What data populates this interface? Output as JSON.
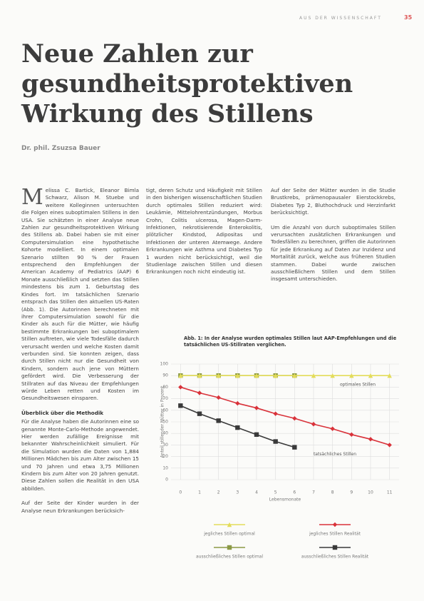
{
  "header": {
    "section": "AUS DER WISSENSCHAFT",
    "page": "35"
  },
  "title": "Neue Zahlen zur gesundheitsprotektiven Wirkung des Stillens",
  "author": "Dr. phil. Zsuzsa Bauer",
  "body": {
    "drop_cap": "M",
    "left_intro": "elissa C. Bartick, Eleanor Bimla Schwarz, Alison M. Stuebe und weitere Kolleginnen untersuchten die Folgen eines suboptimalen Stillens in den USA. Sie schätzten in einer Analyse neue Zahlen zur gesundheitsprotektiven Wirkung des Stillens ab. Dabei haben sie mit einer Computersimulation eine hypothetische Kohorte modelliert. In einem optimalen Szenario stillten 90 % der Frauen entsprechend den Empfehlungen der American Academy of Pediatrics (AAP) 6 Monate ausschließlich und setzten das Stillen mindestens bis zum 1. Geburtstag des Kindes fort. Im tatsächlichen Szenario entsprach das Stillen den aktuellen US-Raten (Abb. 1). Die Autorinnen berechneten mit ihrer Computersimulation sowohl für die Kinder als auch für die Mütter, wie häufig bestimmte Erkrankungen bei suboptimalem Stillen auftreten, wie viele Todesfälle dadurch verursacht werden und welche Kosten damit verbunden sind. Sie konnten zeigen, dass durch Stillen nicht nur die Gesundheit von Kindern, sondern auch jene von Müttern gefördert wird. Die Verbesserung der Stillraten auf das Niveau der Empfehlungen würde Leben retten und Kosten im Gesundheitswesen einsparen.",
    "method_heading": "Überblick über die Methodik",
    "left_method": [
      "Für die Analyse haben die Autorinnen eine so genannte Monte-Carlo-Methode angewendet. Hier werden zufällige Ereignisse mit bekannter Wahrscheinlichkeit simuliert. Für die Simulation wurden die Daten von 1,884 Millionen Mädchen bis zum Alter zwischen 15 und 70 Jahren und etwa 3,75 Millionen Kindern bis zum Alter von 20 Jahren genutzt. Diese Zahlen sollen die Realität in den USA abbilden.",
      "Auf der Seite der Kinder wurden in der Analyse neun Erkrankungen berücksich-"
    ],
    "middle": [
      "tigt, deren Schutz und Häufigkeit mit Stillen in den bisherigen wissenschaftlichen Studien durch optimales Stillen reduziert wird: Leukämie, Mittelohrentzündungen, Morbus Crohn, Colitis ulcerosa, Magen-Darm-Infektionen, nekrotisierende Enterokolitis, plötzlicher Kindstod, Adipositas und Infektionen der unteren Atemwege. Andere Erkrankungen wie Asthma und Diabetes Typ 1 wurden nicht berücksichtigt, weil die Studienlage zwischen Stillen und diesen Erkrankungen noch nicht eindeutig ist."
    ],
    "right": [
      "Auf der Seite der Mütter wurden in die Studie Brustkrebs, prämenopausaler Eierstockkrebs, Diabetes Typ 2, Bluthochdruck und Herzinfarkt berücksichtigt.",
      "Um die Anzahl von durch suboptimales Stillen verursachten zusätzlichen Erkrankungen und Todesfällen zu berechnen, griffen die Autorinnen für jede Erkrankung auf Daten zur Inzidenz und Mortalität zurück, welche aus früheren Studien stammen. Dabei wurde zwischen ausschließlichem Stillen und dem Stillen insgesamt unterschieden."
    ]
  },
  "figure_caption": "Abb. 1: In der Analyse wurden optimales Stillen laut AAP-Empfehlungen und die tatsächlichen US-Stillraten verglichen.",
  "chart_data": {
    "type": "line",
    "x": [
      0,
      1,
      2,
      3,
      4,
      5,
      6,
      7,
      8,
      9,
      10,
      11
    ],
    "xlim": [
      -0.5,
      11.5
    ],
    "xticks": [
      0,
      1,
      2,
      3,
      4,
      5,
      6,
      7,
      8,
      9,
      10,
      11
    ],
    "ylim": [
      0,
      100
    ],
    "yticks": [
      0,
      10,
      20,
      30,
      40,
      50,
      60,
      70,
      80,
      90,
      100
    ],
    "grid": true,
    "x_label": "Lebensmonate",
    "y_label": "Anteil stillender Mütter in Prozent",
    "annotations": [
      "optimales Stillen",
      "tatsächliches Stillen"
    ],
    "series": [
      {
        "name": "jegliches Stillen optimal",
        "color": "#e3dc5a",
        "marker": "triangle",
        "values": [
          90,
          90,
          90,
          90,
          90,
          90,
          90,
          90,
          90,
          90,
          90,
          90
        ]
      },
      {
        "name": "jegliches Stillen Realität",
        "color": "#d9323a",
        "marker": "diamond",
        "values": [
          80,
          75,
          71,
          66,
          62,
          57,
          53,
          48,
          44,
          39,
          35,
          30
        ]
      },
      {
        "name": "ausschließliches Stillen optimal",
        "color": "#8c9a46",
        "marker": "square",
        "values": [
          90,
          90,
          90,
          90,
          90,
          90,
          90,
          null,
          null,
          null,
          null,
          null
        ]
      },
      {
        "name": "ausschließliches Stillen Realität",
        "color": "#3a3a3a",
        "marker": "square",
        "values": [
          64,
          57,
          51,
          45,
          39,
          33,
          28,
          null,
          null,
          null,
          null,
          null
        ]
      }
    ]
  }
}
